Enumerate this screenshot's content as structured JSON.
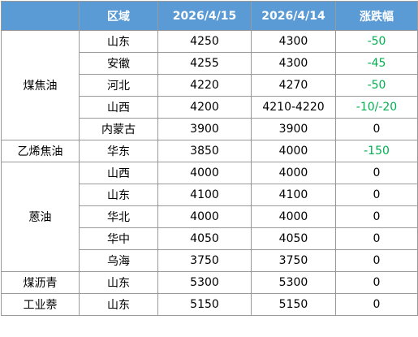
{
  "table": {
    "headers": [
      "",
      "区域",
      "2026/4/15",
      "2026/4/14",
      "涨跌幅"
    ],
    "accent_color": "#5b9bd5",
    "down_color": "#00b050",
    "groups": [
      {
        "product": "煤焦油",
        "rows": [
          {
            "region": "山东",
            "price_0415": "4250",
            "price_0414": "4300",
            "change": "-50"
          },
          {
            "region": "安徽",
            "price_0415": "4255",
            "price_0414": "4300",
            "change": "-45"
          },
          {
            "region": "河北",
            "price_0415": "4220",
            "price_0414": "4270",
            "change": "-50"
          },
          {
            "region": "山西",
            "price_0415": "4200",
            "price_0414": "4210-4220",
            "change": "-10/-20"
          },
          {
            "region": "内蒙古",
            "price_0415": "3900",
            "price_0414": "3900",
            "change": "0"
          }
        ]
      },
      {
        "product": "乙烯焦油",
        "rows": [
          {
            "region": "华东",
            "price_0415": "3850",
            "price_0414": "4000",
            "change": "-150"
          }
        ]
      },
      {
        "product": "蒽油",
        "rows": [
          {
            "region": "山西",
            "price_0415": "4000",
            "price_0414": "4000",
            "change": "0"
          },
          {
            "region": "山东",
            "price_0415": "4100",
            "price_0414": "4100",
            "change": "0"
          },
          {
            "region": "华北",
            "price_0415": "4000",
            "price_0414": "4000",
            "change": "0"
          },
          {
            "region": "华中",
            "price_0415": "4050",
            "price_0414": "4050",
            "change": "0"
          },
          {
            "region": "乌海",
            "price_0415": "3750",
            "price_0414": "3750",
            "change": "0"
          }
        ]
      },
      {
        "product": "煤沥青",
        "rows": [
          {
            "region": "山东",
            "price_0415": "5300",
            "price_0414": "5300",
            "change": "0"
          }
        ]
      },
      {
        "product": "工业萘",
        "rows": [
          {
            "region": "山东",
            "price_0415": "5150",
            "price_0414": "5150",
            "change": "0"
          }
        ]
      }
    ]
  }
}
